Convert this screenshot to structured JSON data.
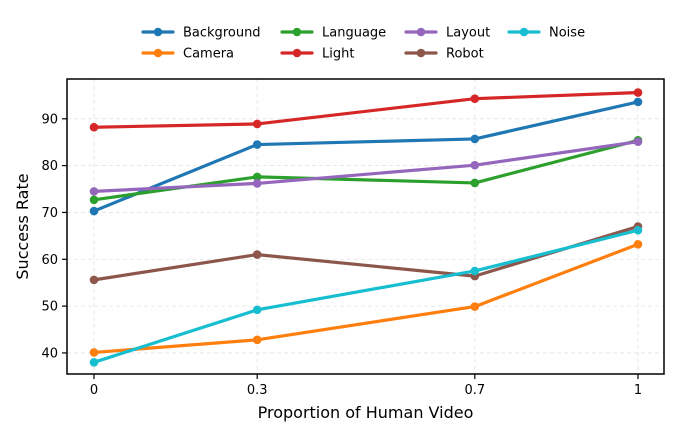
{
  "chart_data": {
    "type": "line",
    "x": [
      0,
      0.3,
      0.7,
      1
    ],
    "x_tick_labels": [
      "0",
      "0.3",
      "0.7",
      "1"
    ],
    "xlabel": "Proportion of Human Video",
    "ylabel": "Success Rate",
    "ylim": [
      35.5,
      98.5
    ],
    "yticks": [
      40,
      50,
      60,
      70,
      80,
      90
    ],
    "grid": true,
    "legend_position": "top-center",
    "series": [
      {
        "name": "Background",
        "color": "#1f77b4",
        "values": [
          70.3,
          84.5,
          85.7,
          93.6
        ]
      },
      {
        "name": "Camera",
        "color": "#ff7f0e",
        "values": [
          40.1,
          42.8,
          49.9,
          63.2
        ]
      },
      {
        "name": "Language",
        "color": "#2ca02c",
        "values": [
          72.7,
          77.6,
          76.3,
          85.4
        ]
      },
      {
        "name": "Light",
        "color": "#d62728",
        "values": [
          88.2,
          88.9,
          94.3,
          95.6
        ]
      },
      {
        "name": "Layout",
        "color": "#9467bd",
        "values": [
          74.5,
          76.2,
          80.1,
          85.1
        ]
      },
      {
        "name": "Robot",
        "color": "#8c564b",
        "values": [
          55.6,
          61.0,
          56.4,
          67.0
        ]
      },
      {
        "name": "Noise",
        "color": "#17becf",
        "values": [
          38.0,
          49.2,
          57.5,
          66.2
        ]
      }
    ]
  }
}
